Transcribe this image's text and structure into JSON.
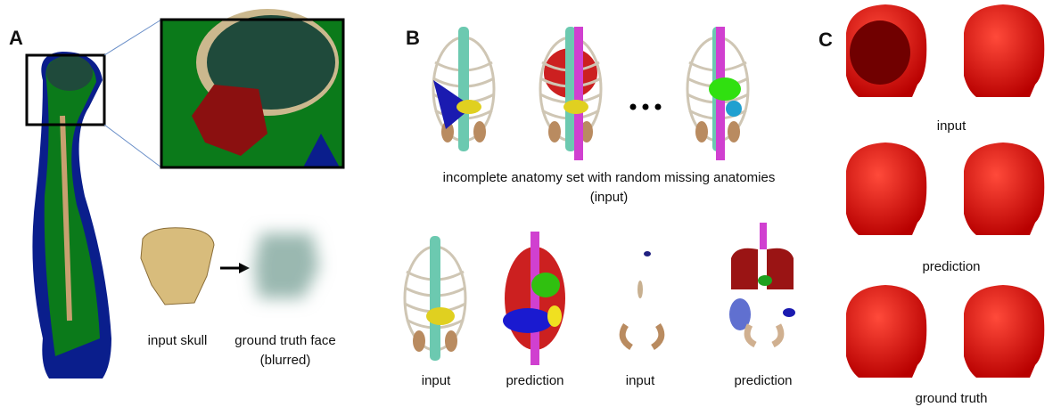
{
  "panels": [
    {
      "label": "A",
      "captions": [
        "input skull",
        "ground truth face",
        "(blurred)"
      ]
    },
    {
      "label": "B",
      "captions": [
        "incomplete anatomy set with random missing anatomies",
        "(input)",
        "input",
        "prediction",
        "input",
        "prediction"
      ]
    },
    {
      "label": "C",
      "captions": [
        "input",
        "prediction",
        "ground truth"
      ]
    }
  ]
}
